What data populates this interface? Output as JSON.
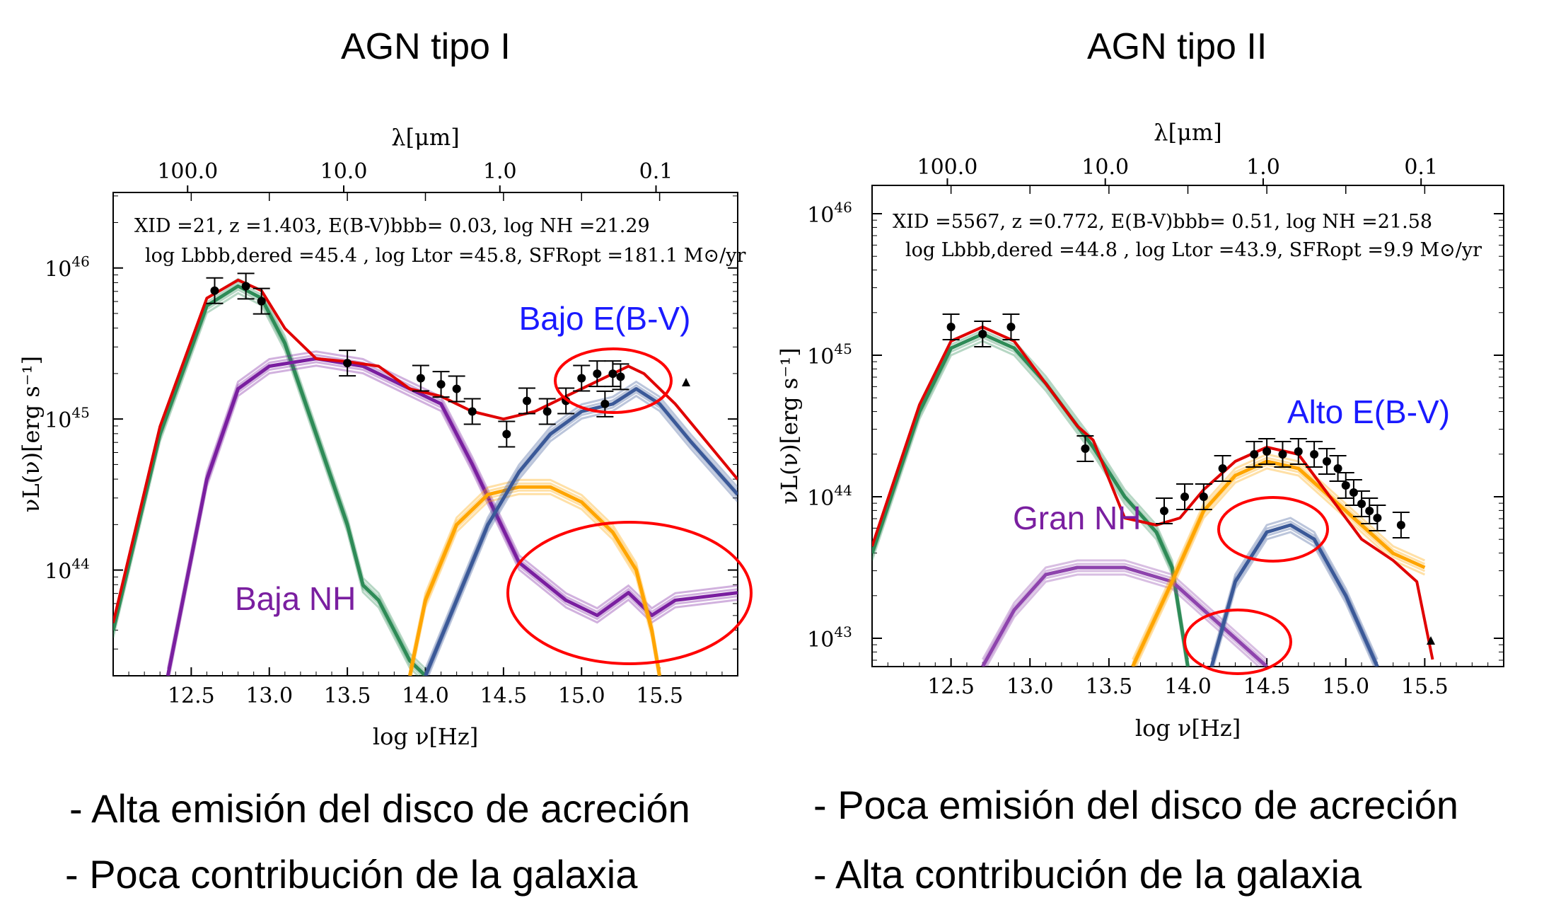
{
  "slide": {
    "left_title": "AGN tipo I",
    "right_title": "AGN tipo II",
    "left_bullets": [
      "- Alta emisión del disco de acreción",
      "- Poca contribución de la galaxia"
    ],
    "right_bullets": [
      "- Poca emisión del disco de acreción",
      "- Alta contribución de la galaxia"
    ]
  },
  "chart_data": [
    {
      "type": "line",
      "xlabel": "log ν[Hz]",
      "ylabel": "νL(ν)[erg s⁻¹]",
      "top_axis_label": "λ[μm]",
      "xlim": [
        12.0,
        16.0
      ],
      "ylim_log10": [
        43.3,
        46.5
      ],
      "x_ticks": [
        "12.5",
        "13.0",
        "13.5",
        "14.0",
        "14.5",
        "15.0",
        "15.5"
      ],
      "top_ticks": [
        "100.0",
        "10.0",
        "1.0",
        "0.1"
      ],
      "y_ticks": [
        "10^44",
        "10^45",
        "10^46"
      ],
      "info_line1": "XID =21,  z =1.403,  E(B-V)bbb= 0.03,  log NH =21.29",
      "info_line2": "log Lbbb,dered =45.4 , log Ltor =45.8,  SFRopt =181.1 M⊙/yr",
      "annotations": [
        {
          "text": "Bajo E(B-V)",
          "color": "#1a1aff"
        },
        {
          "text": "Baja NH",
          "color": "#7a1fa0"
        }
      ],
      "series": [
        {
          "color": "#2e8b57",
          "x": [
            12.0,
            12.3,
            12.6,
            12.8,
            12.95,
            13.1,
            13.3,
            13.5,
            13.6,
            13.7,
            13.8,
            13.9,
            14.0
          ],
          "y": [
            43.6,
            44.9,
            45.75,
            45.88,
            45.8,
            45.5,
            44.9,
            44.3,
            43.9,
            43.8,
            43.6,
            43.4,
            43.3
          ]
        },
        {
          "color": "#7a1fa0",
          "x": [
            12.35,
            12.6,
            12.8,
            13.0,
            13.3,
            13.6,
            13.9,
            14.1,
            14.3,
            14.6,
            14.9,
            15.1,
            15.3,
            15.45,
            15.6,
            16.0
          ],
          "y": [
            43.3,
            44.6,
            45.2,
            45.35,
            45.4,
            45.35,
            45.2,
            45.1,
            44.7,
            44.05,
            43.8,
            43.7,
            43.85,
            43.7,
            43.8,
            43.85
          ]
        },
        {
          "color": "#ffa500",
          "x": [
            13.9,
            14.0,
            14.2,
            14.4,
            14.6,
            14.8,
            15.0,
            15.2,
            15.35,
            15.45,
            15.5
          ],
          "y": [
            43.3,
            43.8,
            44.3,
            44.5,
            44.55,
            44.55,
            44.45,
            44.25,
            44.0,
            43.6,
            43.3
          ]
        },
        {
          "color": "#3b5998",
          "x": [
            14.0,
            14.2,
            14.4,
            14.6,
            14.8,
            15.0,
            15.2,
            15.35,
            15.5,
            15.7,
            16.0
          ],
          "y": [
            43.3,
            43.8,
            44.3,
            44.65,
            44.9,
            45.05,
            45.1,
            45.2,
            45.1,
            44.85,
            44.5
          ]
        },
        {
          "color": "#e00000",
          "x": [
            12.0,
            12.3,
            12.6,
            12.8,
            12.95,
            13.1,
            13.3,
            13.5,
            13.7,
            13.9,
            14.1,
            14.3,
            14.5,
            14.7,
            14.9,
            15.1,
            15.3,
            15.4,
            15.6,
            15.8,
            16.0
          ],
          "y": [
            43.65,
            44.95,
            45.8,
            45.92,
            45.85,
            45.6,
            45.4,
            45.38,
            45.35,
            45.2,
            45.15,
            45.05,
            45.0,
            45.05,
            45.15,
            45.25,
            45.35,
            45.3,
            45.1,
            44.85,
            44.6
          ]
        }
      ],
      "points": [
        {
          "x": 12.65,
          "y": 45.85
        },
        {
          "x": 12.85,
          "y": 45.88
        },
        {
          "x": 12.95,
          "y": 45.78
        },
        {
          "x": 13.5,
          "y": 45.37
        },
        {
          "x": 13.97,
          "y": 45.27
        },
        {
          "x": 14.1,
          "y": 45.23
        },
        {
          "x": 14.2,
          "y": 45.2
        },
        {
          "x": 14.3,
          "y": 45.05
        },
        {
          "x": 14.52,
          "y": 44.9
        },
        {
          "x": 14.65,
          "y": 45.12
        },
        {
          "x": 14.78,
          "y": 45.05
        },
        {
          "x": 14.9,
          "y": 45.12
        },
        {
          "x": 15.0,
          "y": 45.27
        },
        {
          "x": 15.1,
          "y": 45.3
        },
        {
          "x": 15.15,
          "y": 45.1
        },
        {
          "x": 15.2,
          "y": 45.3
        },
        {
          "x": 15.25,
          "y": 45.28
        }
      ]
    },
    {
      "type": "line",
      "xlabel": "log ν[Hz]",
      "ylabel": "νL(ν)[erg s⁻¹]",
      "top_axis_label": "λ[μm]",
      "xlim": [
        12.0,
        16.0
      ],
      "ylim_log10": [
        42.8,
        46.2
      ],
      "x_ticks": [
        "12.5",
        "13.0",
        "13.5",
        "14.0",
        "14.5",
        "15.0",
        "15.5"
      ],
      "top_ticks": [
        "100.0",
        "10.0",
        "1.0",
        "0.1"
      ],
      "y_ticks": [
        "10^43",
        "10^44",
        "10^45",
        "10^46"
      ],
      "info_line1": "XID =5567,   z =0.772,  E(B-V)bbb= 0.51,  log NH =21.58",
      "info_line2": "log Lbbb,dered =44.8 , log Ltor =43.9,  SFRopt =9.9 M⊙/yr",
      "annotations": [
        {
          "text": "Alto E(B-V)",
          "color": "#1a1aff"
        },
        {
          "text": "Gran NH",
          "color": "#7a1fa0"
        }
      ],
      "series": [
        {
          "color": "#2e8b57",
          "x": [
            12.0,
            12.3,
            12.5,
            12.7,
            12.9,
            13.1,
            13.3,
            13.4,
            13.6,
            13.8,
            13.9,
            14.0
          ],
          "y": [
            43.6,
            44.6,
            45.05,
            45.15,
            45.05,
            44.8,
            44.5,
            44.35,
            44.0,
            43.75,
            43.5,
            42.8
          ]
        },
        {
          "color": "#8e44ad",
          "x": [
            12.7,
            12.9,
            13.1,
            13.3,
            13.6,
            13.9,
            14.1,
            14.3,
            14.5
          ],
          "y": [
            42.8,
            43.2,
            43.45,
            43.5,
            43.5,
            43.4,
            43.2,
            43.0,
            42.8
          ]
        },
        {
          "color": "#ffa500",
          "x": [
            13.65,
            13.9,
            14.1,
            14.3,
            14.5,
            14.7,
            14.9,
            15.1,
            15.3,
            15.5
          ],
          "y": [
            42.8,
            43.4,
            43.9,
            44.15,
            44.25,
            44.2,
            44.0,
            43.8,
            43.6,
            43.5
          ]
        },
        {
          "color": "#3b5998",
          "x": [
            14.15,
            14.3,
            14.5,
            14.65,
            14.8,
            15.0,
            15.2
          ],
          "y": [
            42.8,
            43.4,
            43.75,
            43.8,
            43.7,
            43.3,
            42.8
          ]
        },
        {
          "color": "#e00000",
          "x": [
            12.0,
            12.3,
            12.5,
            12.7,
            12.9,
            13.1,
            13.3,
            13.4,
            13.6,
            13.8,
            13.95,
            14.1,
            14.3,
            14.5,
            14.7,
            14.9,
            15.1,
            15.3,
            15.45,
            15.55
          ],
          "y": [
            43.65,
            44.65,
            45.1,
            45.2,
            45.1,
            44.8,
            44.5,
            44.4,
            43.85,
            43.8,
            43.85,
            44.05,
            44.25,
            44.35,
            44.3,
            44.0,
            43.7,
            43.55,
            43.4,
            42.85
          ]
        }
      ],
      "points": [
        {
          "x": 12.5,
          "y": 45.2
        },
        {
          "x": 12.7,
          "y": 45.15
        },
        {
          "x": 12.88,
          "y": 45.2
        },
        {
          "x": 13.35,
          "y": 44.34
        },
        {
          "x": 13.85,
          "y": 43.9
        },
        {
          "x": 13.98,
          "y": 44.0
        },
        {
          "x": 14.1,
          "y": 44.0
        },
        {
          "x": 14.22,
          "y": 44.2
        },
        {
          "x": 14.42,
          "y": 44.3
        },
        {
          "x": 14.5,
          "y": 44.32
        },
        {
          "x": 14.6,
          "y": 44.3
        },
        {
          "x": 14.7,
          "y": 44.32
        },
        {
          "x": 14.8,
          "y": 44.3
        },
        {
          "x": 14.88,
          "y": 44.25
        },
        {
          "x": 14.95,
          "y": 44.2
        },
        {
          "x": 15.0,
          "y": 44.08
        },
        {
          "x": 15.05,
          "y": 44.03
        },
        {
          "x": 15.1,
          "y": 43.95
        },
        {
          "x": 15.15,
          "y": 43.9
        },
        {
          "x": 15.2,
          "y": 43.85
        },
        {
          "x": 15.35,
          "y": 43.8
        }
      ]
    }
  ]
}
